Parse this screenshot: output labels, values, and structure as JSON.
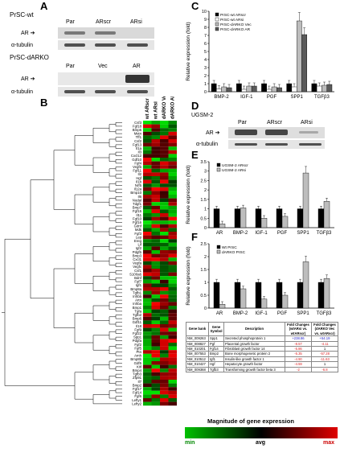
{
  "panels": {
    "A": {
      "label": "A",
      "wt_title": "PrSC-wt",
      "wt_lanes": [
        "Par",
        "ARscr",
        "ARsi"
      ],
      "dko_title": "PrSC-dARKO",
      "dko_lanes": [
        "Par",
        "Vec",
        "AR"
      ],
      "ar_label": "AR",
      "tubulin_label": "α-tubulin",
      "wt_ar_intensity": [
        0.55,
        0.55,
        0.05
      ],
      "dko_ar_intensity": [
        0.0,
        0.05,
        0.9
      ]
    },
    "B": {
      "label": "B",
      "columns": [
        "wt ARscr",
        "wt ARsi",
        "dARKO Vec",
        "dARKO AR"
      ],
      "genes": [
        "Csf3",
        "Fgf18",
        "Bmp5",
        "Mstn",
        "Tff1",
        "Csf2",
        "Fgf13",
        "Il1a",
        "Il3",
        "Cxcl12",
        "Gdf10",
        "Fgf4",
        "Vegfb",
        "Fgf11",
        "Il2",
        "Hgf",
        "Il1b",
        "Nrf5",
        "Il12a",
        "Bmp10",
        "Il6",
        "Nodal",
        "Tdgf1",
        "Bmp7",
        "Fgf15",
        "Il11",
        "Fgf10",
        "Fgf16",
        "Gdnf",
        "Mdk",
        "Fgf3",
        "Lep",
        "Ereg",
        "Lif",
        "Igf2",
        "Pdgfb",
        "Bmp3",
        "Cxcl1",
        "Vegfa",
        "Vegfc",
        "Csf1",
        "S100a6",
        "Bdnf",
        "Fgf7",
        "Igf1",
        "Bmp8a",
        "Tgfb1",
        "Inhbb",
        "Artn",
        "Inhba",
        "Bmp1",
        "Tgfa",
        "Tgfb2",
        "Bmp6",
        "Gdf11",
        "Il18",
        "Fgf9",
        "Fgf22",
        "Spp1",
        "Pdgfa",
        "Fgf2",
        "Fgf5",
        "Ptn",
        "Amh",
        "Bmp8b",
        "Gdf5",
        "Kitl",
        "Bmp4",
        "Tgfb3",
        "Zfp91",
        "Il7",
        "Bmp2",
        "Fgf17",
        "Fgf14",
        "Fgf6",
        "Lefty1",
        "Lefty2"
      ]
    },
    "C": {
      "label": "C",
      "legend": [
        "PrSC-wt ARscr",
        "PrSC-wt ARsi",
        "PrSC-dARKO Vec",
        "PrSC-dARKO AR"
      ]
    },
    "D": {
      "label": "D",
      "title": "UGSM-2",
      "lanes": [
        "Par",
        "ARscr",
        "ARsi"
      ],
      "ar_label": "AR",
      "tubulin_label": "α-tubulin"
    },
    "E": {
      "label": "E",
      "legend": [
        "UGSM-2 ARscr",
        "UGSM-2 ARsi"
      ]
    },
    "F": {
      "label": "F",
      "legend": [
        "Wt PrSC",
        "dARKO PrSC"
      ]
    },
    "table": {
      "headers": [
        "Gene bank",
        "Gene Symbol",
        "Description",
        "Fold Changes (wtARsi vs. wtARscr)",
        "Fold Changes (dARKO Vec vs. wtARscr)"
      ],
      "rows": [
        [
          "NM_009263",
          "Spp1",
          "Secreted phosphoprotein 1",
          "+238.86",
          "+54.19"
        ],
        [
          "NM_008827",
          "Pgf",
          "Placental growth factor",
          "-8.57",
          "-4.11"
        ],
        [
          "NM_010201",
          "Fgf14",
          "Fibroblast growth factor 14",
          "-5.86",
          "1"
        ],
        [
          "NM_007553",
          "Bmp2",
          "Bone morphogenetic protein 2",
          "-5.35",
          "-57.28"
        ],
        [
          "NM_010512",
          "Igf1",
          "Insulin-like growth factor 1",
          "-4.90",
          "-11.63"
        ],
        [
          "NM_010427",
          "Hgf",
          "Hepatocyte growth factor",
          "-4.59",
          "1"
        ],
        [
          "NM_009368",
          "Tgfb3",
          "Transforming growth factor beta 3",
          "-2",
          "-6.8"
        ]
      ]
    },
    "scale": {
      "title": "Magnitude of gene expression",
      "min": "min",
      "avg": "avg",
      "max": "max",
      "colors": [
        "#00c000",
        "#000000",
        "#e00000"
      ]
    }
  },
  "chart_data": [
    {
      "panel": "C",
      "type": "bar",
      "categories": [
        "BMP-2",
        "IGF-1",
        "PGF",
        "SPP1",
        "TGFβ3"
      ],
      "ylabel": "Relative expression (fold)",
      "ylim": [
        0,
        10
      ],
      "yticks": [
        0,
        1,
        2,
        3,
        4,
        5,
        6,
        7,
        8,
        9,
        10
      ],
      "series": [
        {
          "name": "PrSC-wt ARscr",
          "color": "#000000",
          "values": [
            1,
            1,
            1,
            1,
            1
          ]
        },
        {
          "name": "PrSC-wt ARsi",
          "color": "#ffffff",
          "values": [
            0.35,
            0.3,
            0.3,
            0.6,
            0.7
          ]
        },
        {
          "name": "PrSC-dARKO Vec",
          "color": "#bdbdbd",
          "values": [
            0.6,
            0.7,
            0.6,
            8.8,
            0.8
          ]
        },
        {
          "name": "PrSC-dARKO AR",
          "color": "#5a5a5a",
          "values": [
            0.5,
            0.7,
            0.5,
            7.1,
            0.9
          ]
        }
      ]
    },
    {
      "panel": "E",
      "type": "bar",
      "categories": [
        "AR",
        "BMP-2",
        "IGF-1",
        "PGF",
        "SPP1",
        "TGFβ3"
      ],
      "ylabel": "Relative expression (fold)",
      "ylim": [
        0,
        3.5
      ],
      "yticks": [
        0,
        0.5,
        1,
        1.5,
        2,
        2.5,
        3,
        3.5
      ],
      "series": [
        {
          "name": "UGSM-2 ARscr",
          "color": "#000000",
          "values": [
            1,
            1,
            1,
            1,
            1,
            1
          ]
        },
        {
          "name": "UGSM-2 ARsi",
          "color": "#bdbdbd",
          "values": [
            0.2,
            1.05,
            0.5,
            0.6,
            2.9,
            1.4
          ]
        }
      ]
    },
    {
      "panel": "F",
      "type": "bar",
      "categories": [
        "AR",
        "BMP-2",
        "IGF-1",
        "PGF",
        "SPP1",
        "TGFβ3"
      ],
      "ylabel": "Relative expression (fold)",
      "ylim": [
        0,
        2.5
      ],
      "yticks": [
        0,
        0.5,
        1,
        1.5,
        2,
        2.5
      ],
      "series": [
        {
          "name": "Wt PrSC",
          "color": "#000000",
          "values": [
            1,
            1,
            1,
            1,
            1,
            1
          ]
        },
        {
          "name": "dARKO PrSC",
          "color": "#bdbdbd",
          "values": [
            0.15,
            0.75,
            0.35,
            0.5,
            1.8,
            1.15
          ]
        }
      ]
    }
  ]
}
